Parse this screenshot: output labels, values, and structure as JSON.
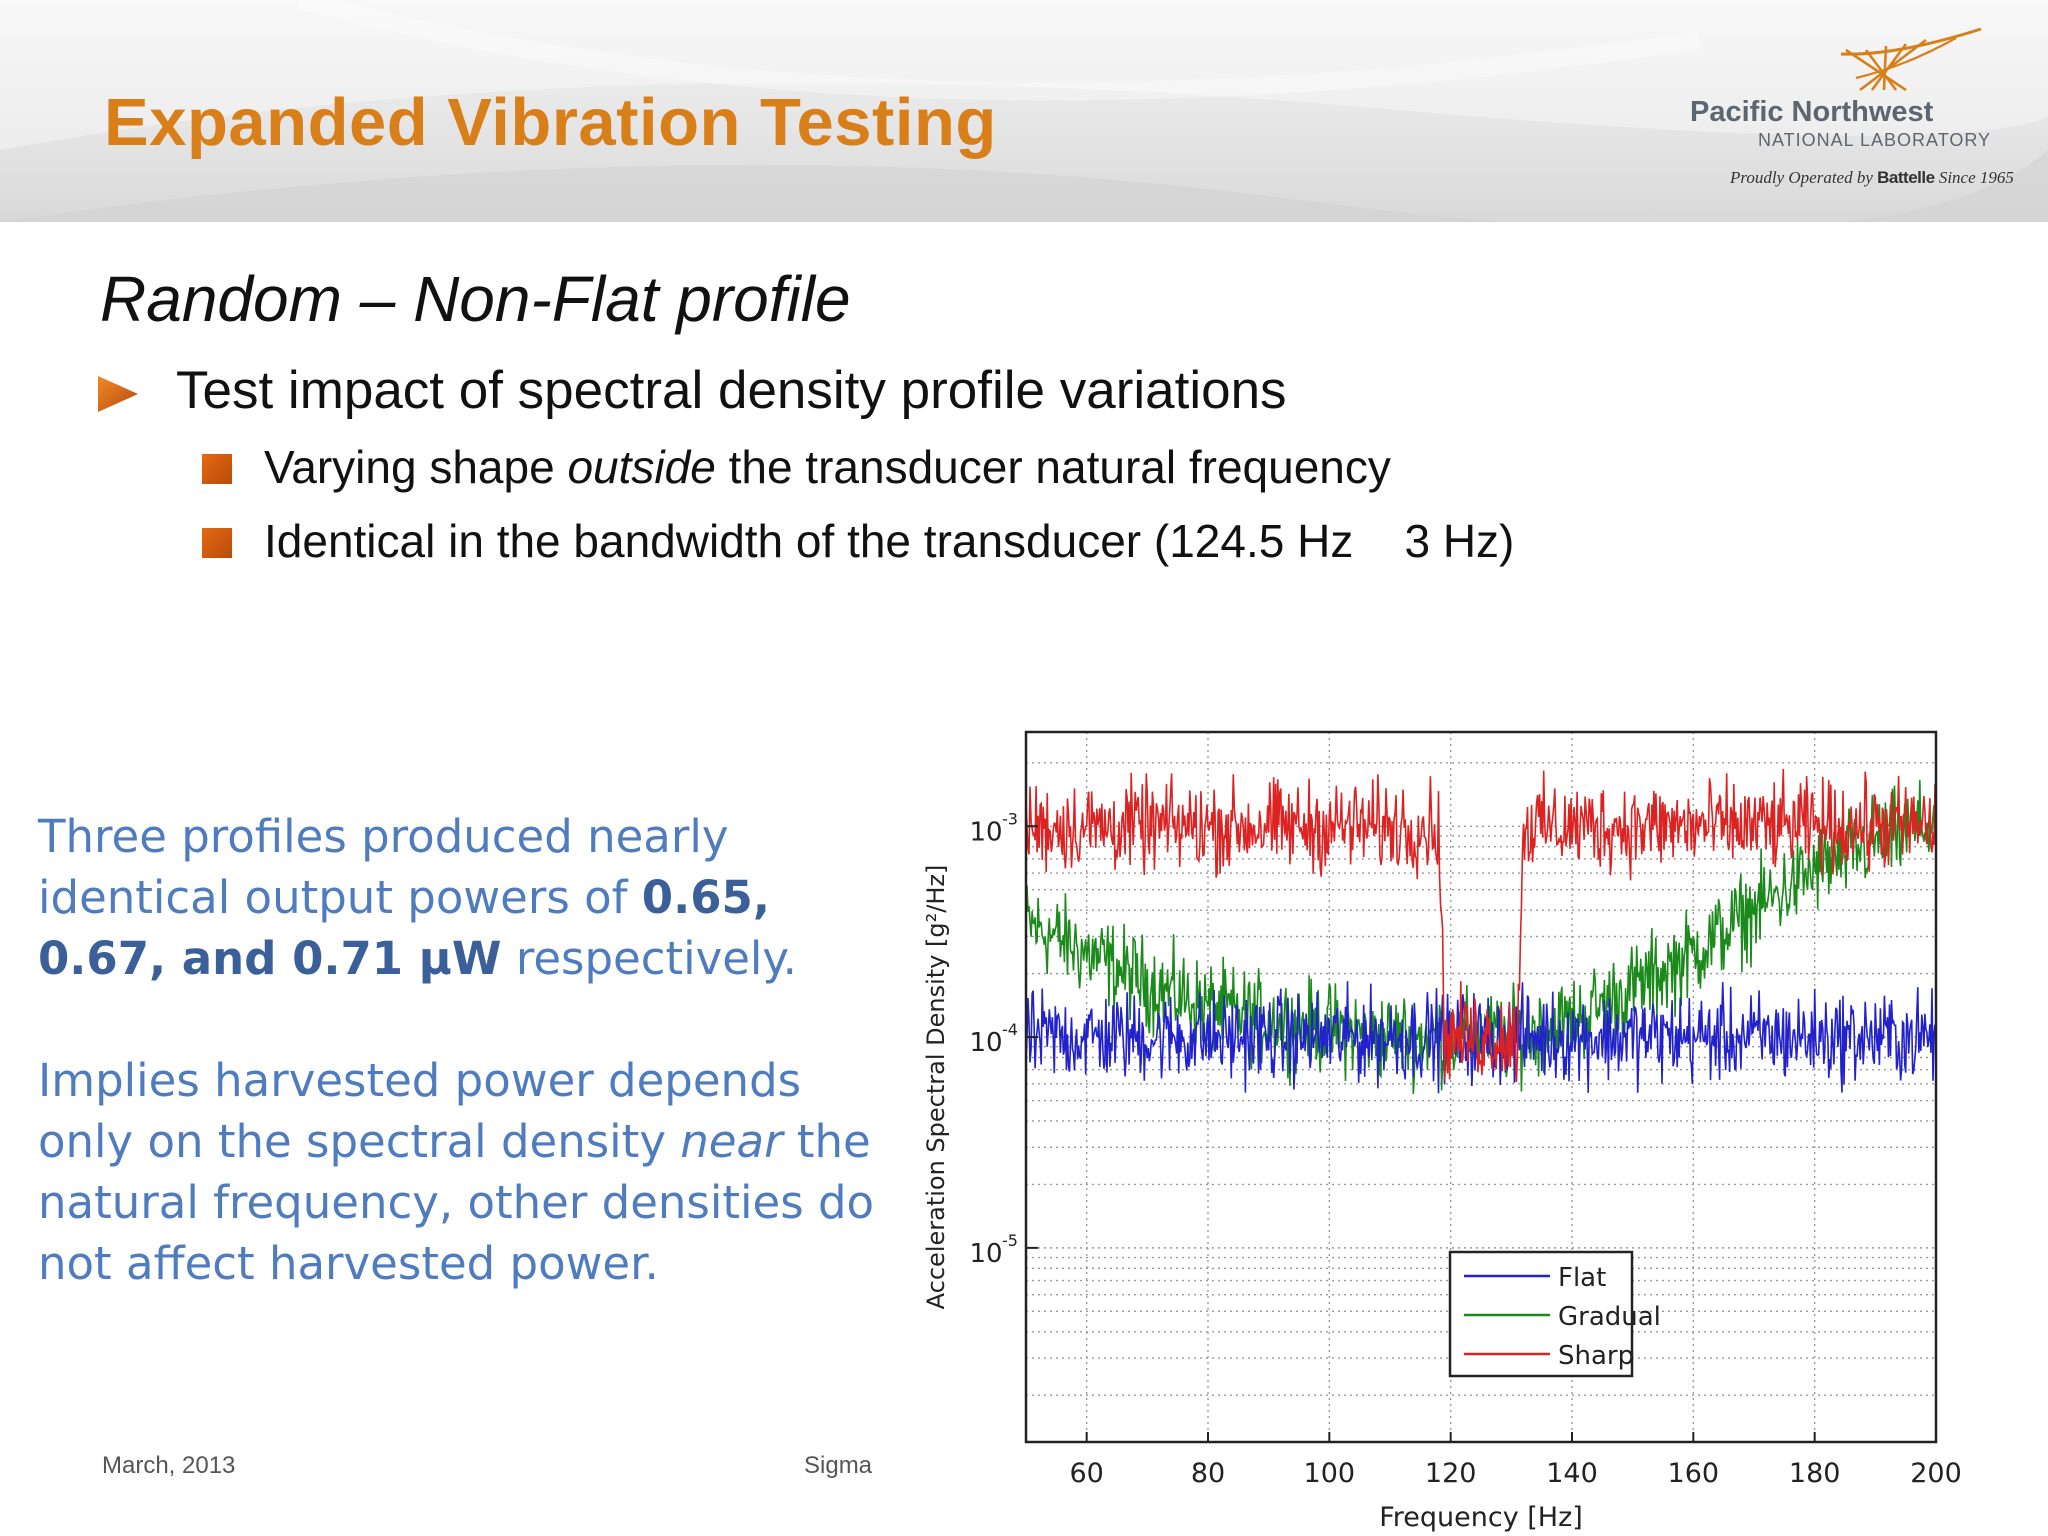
{
  "header": {
    "title": "Expanded Vibration Testing",
    "logo_line1": "Pacific Northwest",
    "logo_line2": "NATIONAL LABORATORY",
    "tagline_pre": "Proudly Operated by",
    "tagline_brand": "Battelle",
    "tagline_post": "Since 1965"
  },
  "content": {
    "subtitle": "Random – Non-Flat profile",
    "bullet": "Test impact of spectral density profile variations",
    "sub1_pre": "Varying shape",
    "sub1_em": "outside",
    "sub1_post": "the transducer natural frequency",
    "sub2": "Identical in the bandwidth of the transducer (124.5 Hz    3 Hz)"
  },
  "side_note": {
    "p1_pre": "Three profiles produced nearly identical output powers of",
    "p1_bold": "0.65, 0.67, and 0.71 µW",
    "p1_post": "respectively.",
    "p2_pre": "Implies harvested power depends only on the spectral density",
    "p2_em": "near",
    "p2_post": "the natural frequency, other densities do not affect harvested power."
  },
  "footer": {
    "date": "March, 2013",
    "center": "Sigma"
  },
  "colors": {
    "title": "#d97f1a",
    "blue_text": "#4f7bbf",
    "flat": "#2222cc",
    "gradual": "#1a8a1a",
    "sharp": "#dd2222"
  },
  "chart_data": {
    "type": "line",
    "xlabel": "Frequency [Hz]",
    "ylabel": "Acceleration Spectral Density [g²/Hz]",
    "xlim": [
      50,
      200
    ],
    "ylim": [
      1.2e-06,
      0.0028
    ],
    "yscale": "log",
    "x_ticks": [
      60,
      80,
      100,
      120,
      140,
      160,
      180,
      200
    ],
    "y_ticks": [
      {
        "value": 1e-05,
        "label": "10",
        "exp": "-5"
      },
      {
        "value": 0.0001,
        "label": "10",
        "exp": "-4"
      },
      {
        "value": 0.001,
        "label": "10",
        "exp": "-3"
      }
    ],
    "grid": true,
    "legend_position": "lower-right",
    "series": [
      {
        "name": "Flat",
        "color": "#2222cc",
        "x": [
          50,
          120,
          130,
          200
        ],
        "y": [
          0.0001,
          0.0001,
          0.0001,
          0.0001
        ]
      },
      {
        "name": "Gradual",
        "color": "#1a8a1a",
        "x": [
          50,
          60,
          70,
          80,
          90,
          100,
          110,
          120,
          130,
          140,
          150,
          160,
          170,
          180,
          190,
          200
        ],
        "y": [
          0.00035,
          0.00025,
          0.00018,
          0.00014,
          0.00012,
          0.00011,
          0.0001,
          0.0001,
          0.0001,
          0.00012,
          0.00017,
          0.00025,
          0.0004,
          0.00062,
          0.00085,
          0.00105
        ]
      },
      {
        "name": "Sharp",
        "color": "#dd2222",
        "x": [
          50,
          118,
          119,
          131,
          132,
          200
        ],
        "y": [
          0.001,
          0.001,
          0.0001,
          0.0001,
          0.001,
          0.001
        ]
      }
    ]
  }
}
